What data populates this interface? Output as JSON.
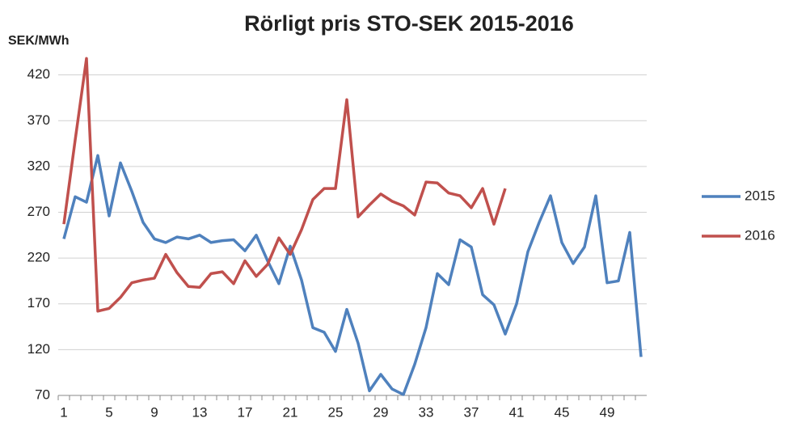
{
  "chart_data": {
    "type": "line",
    "title": "Rörligt pris STO-SEK 2015-2016",
    "y_label": "SEK/MWh",
    "categories": [
      1,
      null,
      null,
      null,
      5,
      null,
      null,
      null,
      9,
      null,
      null,
      null,
      13,
      null,
      null,
      null,
      17,
      null,
      null,
      null,
      21,
      null,
      null,
      null,
      25,
      null,
      null,
      null,
      29,
      null,
      null,
      null,
      33,
      null,
      null,
      null,
      37,
      null,
      null,
      null,
      41,
      null,
      null,
      null,
      45,
      null,
      null,
      null,
      49,
      null,
      null,
      null
    ],
    "series": [
      {
        "name": "2015",
        "color": "#4f81bd",
        "values": [
          241,
          287,
          281,
          332,
          266,
          324,
          293,
          259,
          241,
          237,
          243,
          241,
          245,
          237,
          239,
          240,
          228,
          245,
          217,
          192,
          233,
          196,
          144,
          139,
          118,
          164,
          127,
          75,
          93,
          77,
          71,
          104,
          144,
          203,
          191,
          240,
          232,
          180,
          169,
          137,
          170,
          227,
          259,
          288,
          237,
          214,
          232,
          288,
          193,
          195,
          248,
          112
        ]
      },
      {
        "name": "2016",
        "color": "#c0504d",
        "values": [
          257,
          349,
          438,
          162,
          165,
          177,
          193,
          196,
          198,
          224,
          204,
          189,
          188,
          203,
          205,
          192,
          217,
          200,
          213,
          242,
          224,
          251,
          284,
          296,
          296,
          393,
          265,
          278,
          290,
          282,
          277,
          267,
          303,
          302,
          291,
          288,
          275,
          296,
          257,
          296,
          null,
          null,
          null,
          null,
          null,
          null,
          null,
          null,
          null,
          null,
          null,
          null
        ]
      }
    ],
    "ylim": [
      70,
      440
    ],
    "yticks": [
      70,
      120,
      170,
      220,
      270,
      320,
      370,
      420
    ],
    "grid": true,
    "legend": "right"
  }
}
